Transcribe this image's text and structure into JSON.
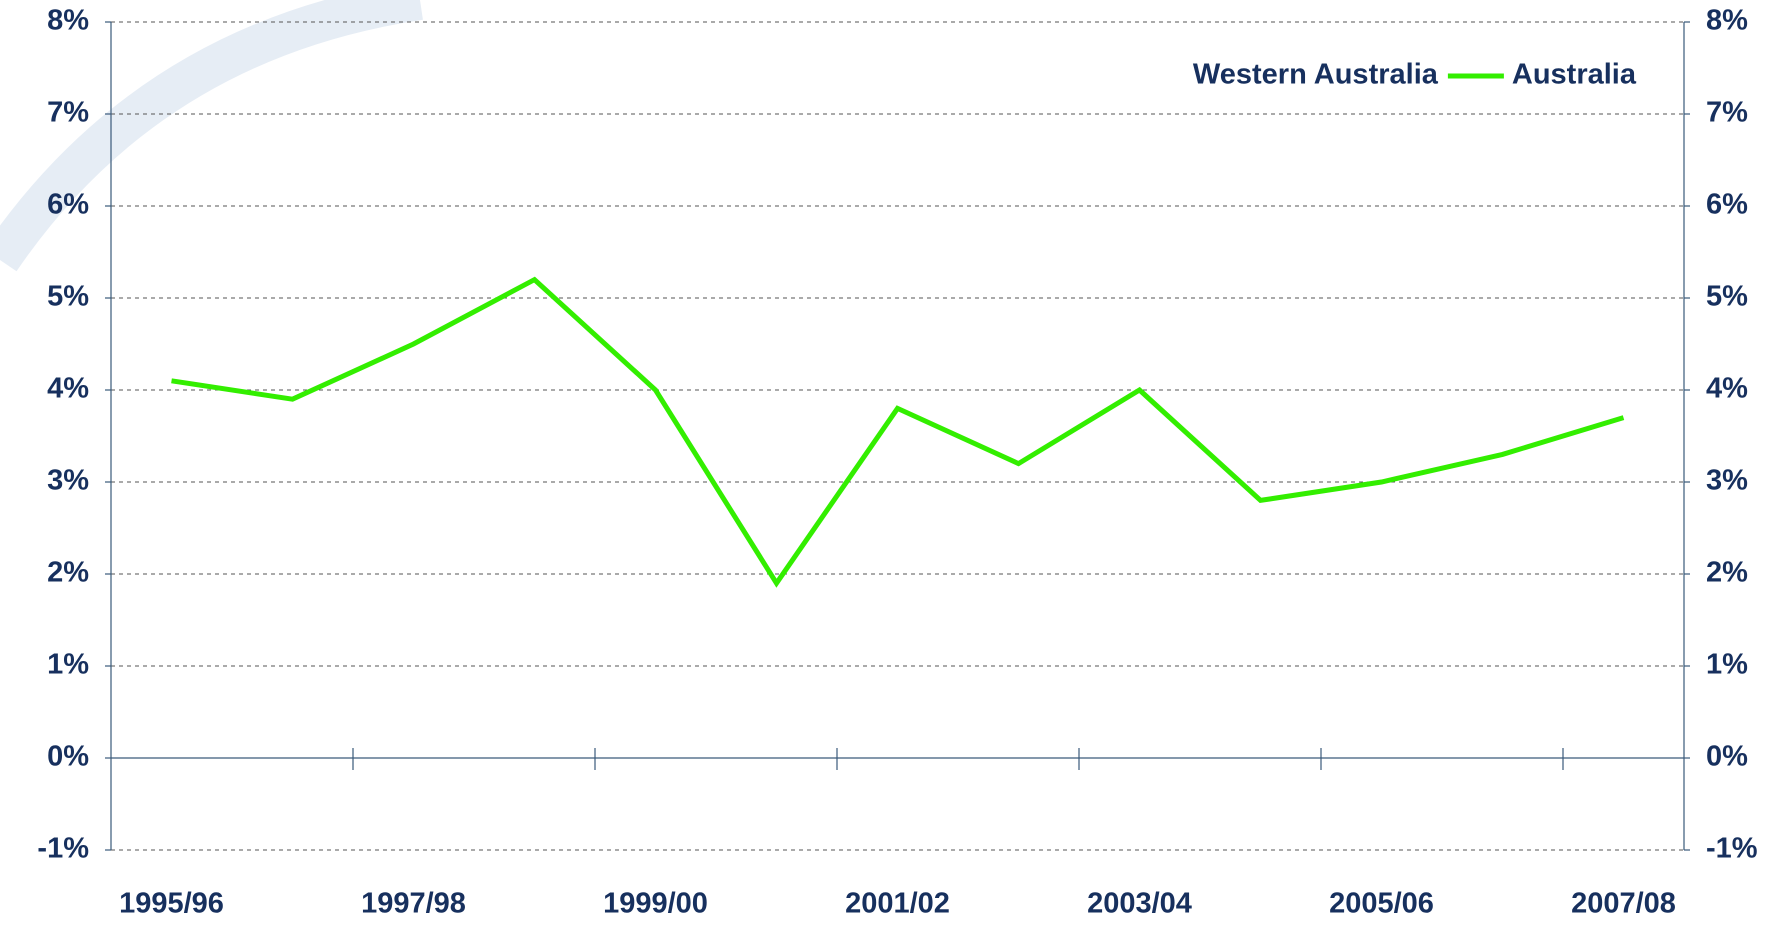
{
  "chart_data": {
    "type": "line",
    "categories": [
      "1995/96",
      null,
      "1997/98",
      null,
      "1999/00",
      null,
      "2001/02",
      null,
      "2003/04",
      null,
      "2005/06",
      null,
      "2007/08"
    ],
    "series": [
      {
        "name": "Western Australia",
        "color": "#ffffff",
        "values": [
          null,
          null,
          null,
          null,
          null,
          null,
          null,
          null,
          null,
          null,
          null,
          null,
          null
        ]
      },
      {
        "name": "Australia",
        "color": "#33ee00",
        "values": [
          4.1,
          3.9,
          4.5,
          5.2,
          4.0,
          1.9,
          3.8,
          3.2,
          4.0,
          2.8,
          3.0,
          3.3,
          3.7
        ]
      }
    ],
    "ylim": [
      -1,
      8
    ],
    "yticks": [
      {
        "value": -1,
        "label": "-1%"
      },
      {
        "value": 0,
        "label": "0%"
      },
      {
        "value": 1,
        "label": "1%"
      },
      {
        "value": 2,
        "label": "2%"
      },
      {
        "value": 3,
        "label": "3%"
      },
      {
        "value": 4,
        "label": "4%"
      },
      {
        "value": 5,
        "label": "5%"
      },
      {
        "value": 6,
        "label": "6%"
      },
      {
        "value": 7,
        "label": "7%"
      },
      {
        "value": 8,
        "label": "8%"
      }
    ],
    "y2lim": [
      -1,
      8
    ],
    "y2ticks": [
      {
        "value": -1,
        "label": "-1%"
      },
      {
        "value": 0,
        "label": "0%"
      },
      {
        "value": 1,
        "label": "1%"
      },
      {
        "value": 2,
        "label": "2%"
      },
      {
        "value": 3,
        "label": "3%"
      },
      {
        "value": 4,
        "label": "4%"
      },
      {
        "value": 5,
        "label": "5%"
      },
      {
        "value": 6,
        "label": "6%"
      },
      {
        "value": 7,
        "label": "7%"
      },
      {
        "value": 8,
        "label": "8%"
      }
    ],
    "grid": true,
    "legend": "top-right"
  }
}
